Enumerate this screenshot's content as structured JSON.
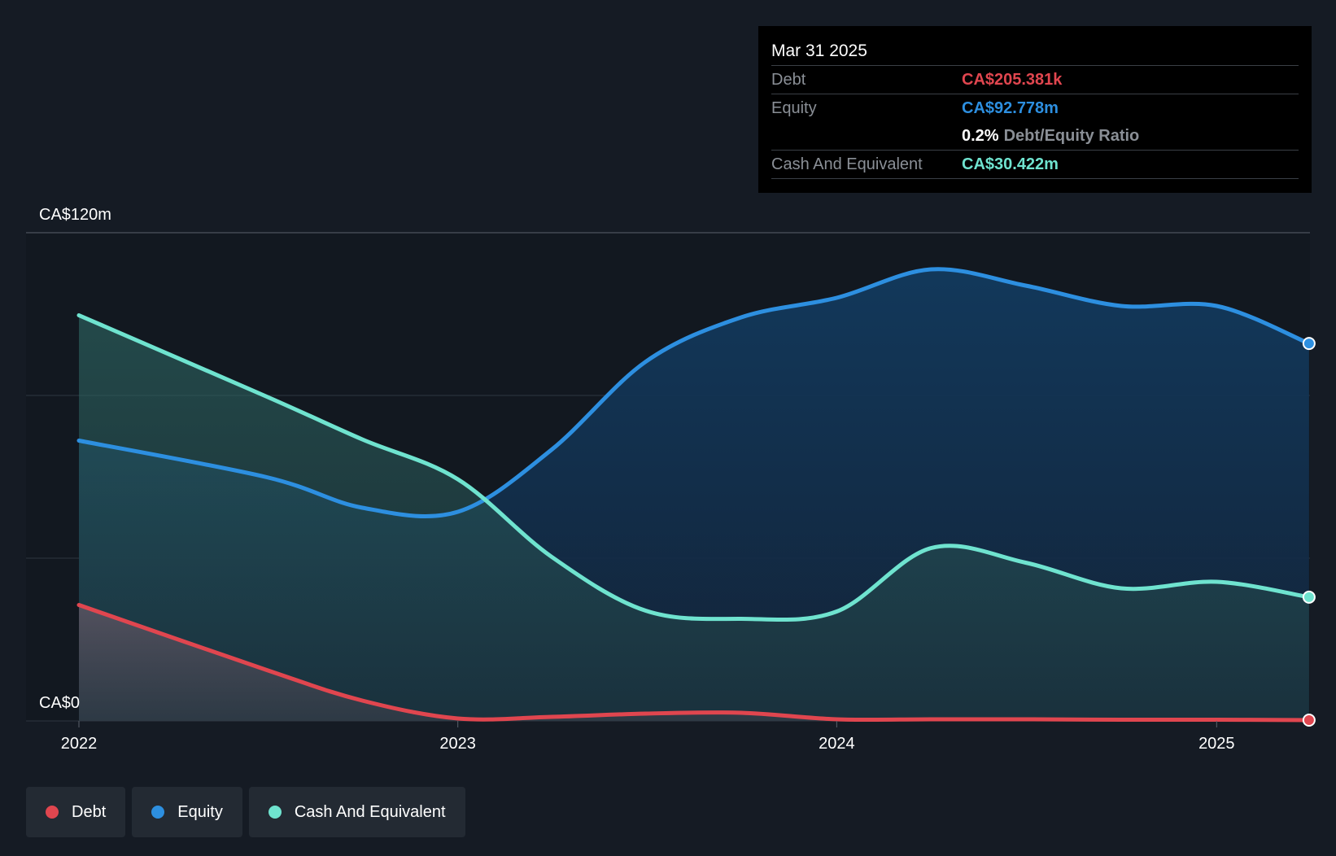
{
  "chart_data": {
    "type": "area",
    "x_ticks": [
      "2022",
      "2023",
      "2024",
      "2025"
    ],
    "y_labels": {
      "top": "CA$120m",
      "bottom": "CA$0"
    },
    "ylim": [
      0,
      120
    ],
    "grid": true,
    "x_start": "2022-01-01",
    "series": [
      {
        "name": "Equity",
        "color": "#2d8fe0",
        "x": [
          "2022-01-01",
          "2022-07-01",
          "2022-10-01",
          "2023-01-01",
          "2023-04-01",
          "2023-07-01",
          "2023-10-01",
          "2024-01-01",
          "2024-04-01",
          "2024-07-01",
          "2024-10-01",
          "2025-01-01",
          "2025-03-31"
        ],
        "values": [
          68.9,
          59.9,
          52.4,
          51.4,
          66.6,
          88.3,
          99.2,
          104.0,
          111.0,
          107.0,
          102.0,
          102.0,
          92.778
        ]
      },
      {
        "name": "Cash And Equivalent",
        "color": "#6fe3cf",
        "x": [
          "2022-01-01",
          "2022-07-01",
          "2022-10-01",
          "2023-01-01",
          "2023-04-01",
          "2023-07-01",
          "2023-10-01",
          "2024-01-01",
          "2024-04-01",
          "2024-07-01",
          "2024-10-01",
          "2025-01-01",
          "2025-03-31"
        ],
        "values": [
          99.7,
          79.7,
          69.2,
          59.4,
          40.4,
          27.1,
          25.1,
          26.9,
          42.5,
          38.9,
          32.6,
          34.2,
          30.422
        ]
      },
      {
        "name": "Debt",
        "color": "#e0464f",
        "x": [
          "2022-01-01",
          "2022-07-01",
          "2022-10-01",
          "2023-01-01",
          "2023-04-01",
          "2023-07-01",
          "2023-10-01",
          "2024-01-01",
          "2024-04-01",
          "2024-07-01",
          "2024-10-01",
          "2025-01-01",
          "2025-03-31"
        ],
        "values": [
          28.5,
          12.5,
          5.0,
          0.6,
          1.0,
          1.8,
          2.0,
          0.4,
          0.4,
          0.4,
          0.3,
          0.3,
          0.205
        ]
      }
    ]
  },
  "tooltip": {
    "date": "Mar 31 2025",
    "debt_label": "Debt",
    "debt_value": "CA$205.381k",
    "equity_label": "Equity",
    "equity_value": "CA$92.778m",
    "ratio_value": "0.2%",
    "ratio_label": "Debt/Equity Ratio",
    "cash_label": "Cash And Equivalent",
    "cash_value": "CA$30.422m",
    "colors": {
      "debt": "#e0464f",
      "equity": "#2d8fe0",
      "cash": "#6fe3cf"
    }
  },
  "legend": [
    {
      "label": "Debt",
      "color": "#e0464f"
    },
    {
      "label": "Equity",
      "color": "#2d8fe0"
    },
    {
      "label": "Cash And Equivalent",
      "color": "#6fe3cf"
    }
  ]
}
